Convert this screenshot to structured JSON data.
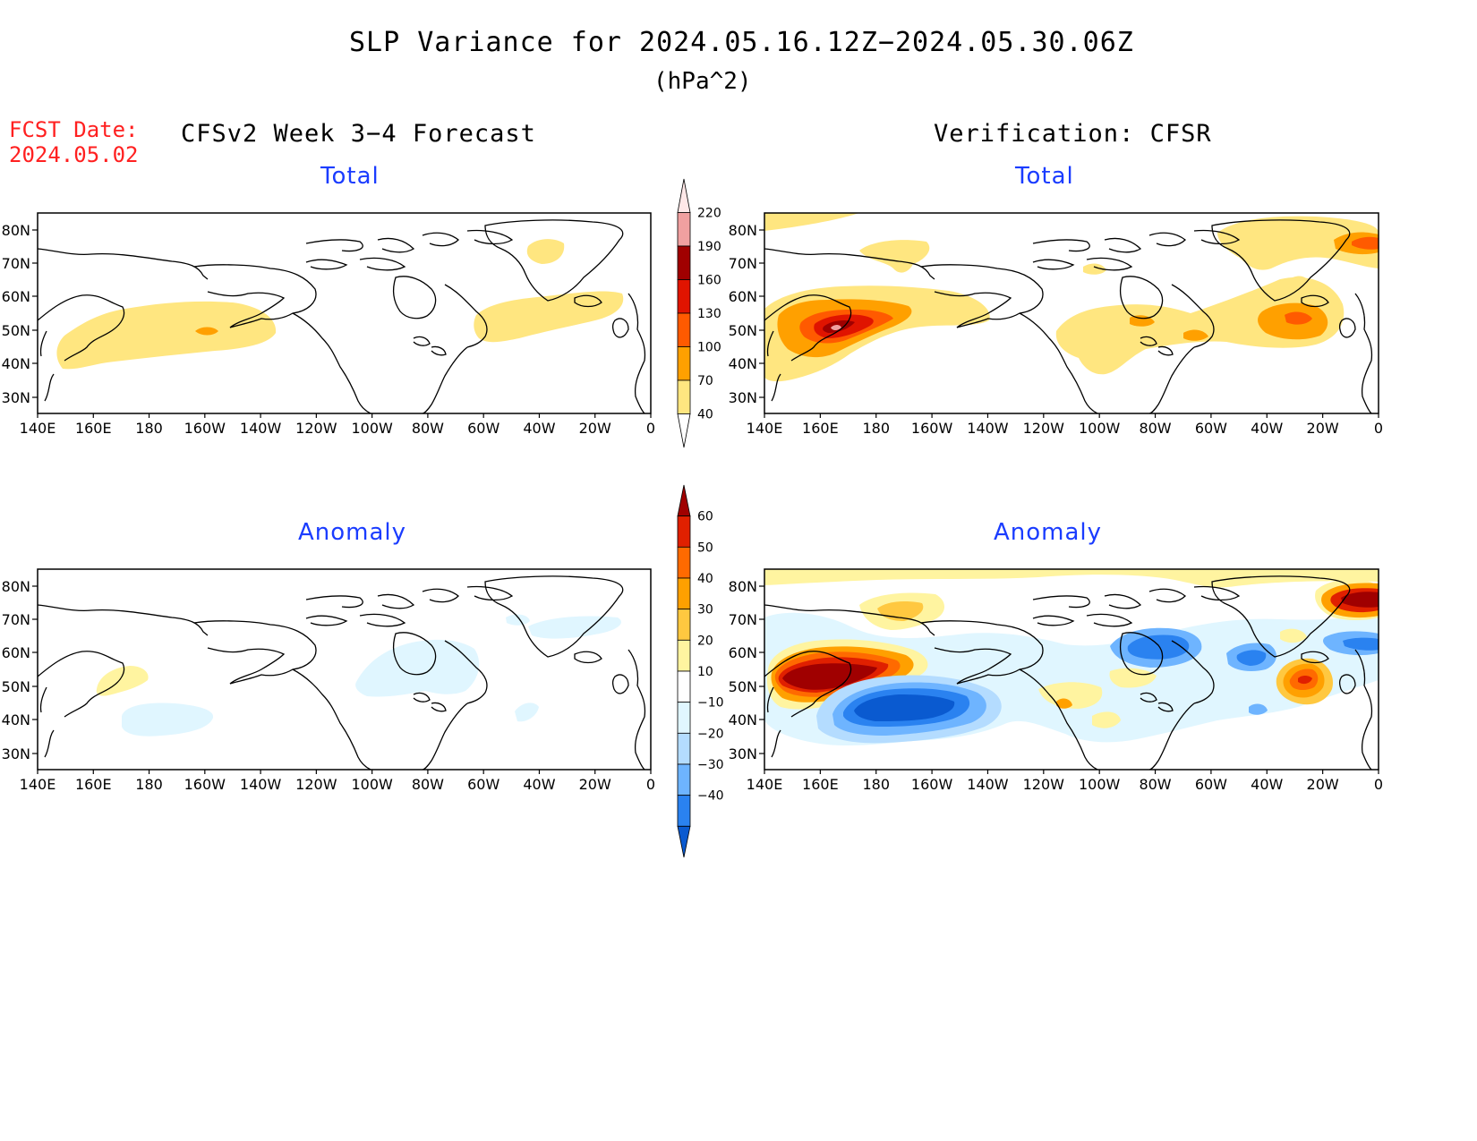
{
  "title": "SLP Variance for 2024.05.16.12Z−2024.05.30.06Z",
  "units": "(hPa^2)",
  "fcst_date_label": "FCST Date:",
  "fcst_date_value": "2024.05.02",
  "left_header": "CFSv2 Week 3−4 Forecast",
  "right_header": "Verification: CFSR",
  "panel_titles": {
    "tl": "Total",
    "tr": "Total",
    "bl": "Anomaly",
    "br": "Anomaly"
  },
  "lat_ticks": [
    "80N",
    "70N",
    "60N",
    "50N",
    "40N",
    "30N"
  ],
  "lon_ticks": [
    "140E",
    "160E",
    "180",
    "160W",
    "140W",
    "120W",
    "100W",
    "80W",
    "60W",
    "40W",
    "20W",
    "0"
  ],
  "total_scale": {
    "levels": [
      "40",
      "70",
      "100",
      "130",
      "160",
      "190",
      "220"
    ],
    "colors": [
      "#ffe680",
      "#ffa000",
      "#ff5a00",
      "#e01400",
      "#a00000",
      "#f0a0a0",
      "#ffe8e8"
    ]
  },
  "anom_scale": {
    "levels": [
      "−40",
      "−30",
      "−20",
      "−10",
      "10",
      "20",
      "30",
      "40",
      "50",
      "60"
    ],
    "colors": [
      "#0a5ad0",
      "#2a82f0",
      "#6eb4ff",
      "#b4dcff",
      "#e0f6ff",
      "#ffffff",
      "#fff4a0",
      "#ffc840",
      "#ffa000",
      "#ff6a00",
      "#e02000",
      "#a00000"
    ]
  }
}
